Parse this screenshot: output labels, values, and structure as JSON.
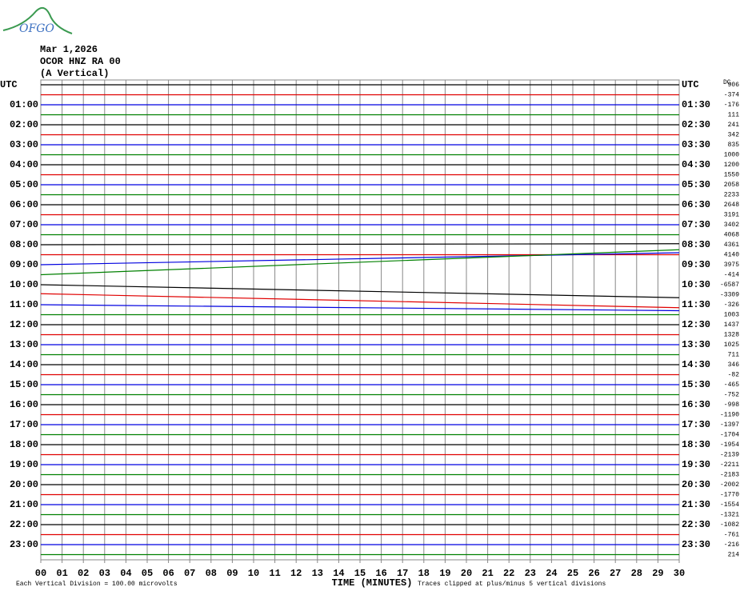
{
  "logo": "OFGO",
  "chart_data": {
    "type": "helicorder",
    "header": [
      "Mar 1,2026",
      "OCOR HNZ RA 00",
      "(A Vertical)"
    ],
    "left_labels": [
      "UTC",
      "01:00",
      "02:00",
      "03:00",
      "04:00",
      "05:00",
      "06:00",
      "07:00",
      "08:00",
      "09:00",
      "10:00",
      "11:00",
      "12:00",
      "13:00",
      "14:00",
      "15:00",
      "16:00",
      "17:00",
      "18:00",
      "19:00",
      "20:00",
      "21:00",
      "22:00",
      "23:00"
    ],
    "right_labels": [
      "UTC",
      "01:30",
      "02:30",
      "03:30",
      "04:30",
      "05:30",
      "06:30",
      "07:30",
      "08:30",
      "09:30",
      "10:30",
      "11:30",
      "12:30",
      "13:30",
      "14:30",
      "15:30",
      "16:30",
      "17:30",
      "18:30",
      "19:30",
      "20:30",
      "21:30",
      "22:30",
      "23:30"
    ],
    "dc_label": "DC",
    "dc_values": [
      906,
      -374,
      -176,
      111,
      241,
      342,
      835,
      1000,
      1200,
      1550,
      2058,
      2233,
      2648,
      3191,
      3402,
      4068,
      4361,
      4140,
      3975,
      -414,
      -6587,
      -3309,
      -326,
      1003,
      1437,
      1328,
      1025,
      711,
      346,
      -82,
      -465,
      -752,
      -998,
      -1190,
      -1397,
      -1704,
      -1954,
      -2139,
      -2211,
      -2183,
      -2002,
      -1770,
      -1554,
      -1321,
      -1082,
      -761,
      -216,
      214
    ],
    "trace_colors": [
      "#000000",
      "#e00000",
      "#0000e0",
      "#008000"
    ],
    "x": [
      0,
      30
    ],
    "xlim": [
      0,
      30
    ],
    "xticks": [
      {
        "value": 0,
        "label": "00"
      },
      {
        "value": 1,
        "label": "01"
      },
      {
        "value": 2,
        "label": "02"
      },
      {
        "value": 3,
        "label": "03"
      },
      {
        "value": 4,
        "label": "04"
      },
      {
        "value": 5,
        "label": "05"
      },
      {
        "value": 6,
        "label": "06"
      },
      {
        "value": 7,
        "label": "07"
      },
      {
        "value": 8,
        "label": "08"
      },
      {
        "value": 9,
        "label": "09"
      },
      10,
      11,
      12,
      13,
      14,
      15,
      16,
      17,
      18,
      19,
      20,
      21,
      22,
      23,
      24,
      25,
      26,
      27,
      28,
      29,
      30
    ],
    "x_label": "TIME (MINUTES)",
    "scale_note": "Each Vertical Division =  100.00 microvolts",
    "clip_note": "Traces clipped at plus/minus 5 vertical divisions",
    "traces": [
      [
        0,
        0
      ],
      [
        0,
        0
      ],
      [
        0,
        0
      ],
      [
        0,
        0
      ],
      [
        0,
        0
      ],
      [
        0,
        0
      ],
      [
        0,
        0
      ],
      [
        0,
        0
      ],
      [
        0,
        0
      ],
      [
        0,
        0
      ],
      [
        0,
        0
      ],
      [
        0,
        0
      ],
      [
        0,
        0
      ],
      [
        0,
        0
      ],
      [
        0,
        0
      ],
      [
        0,
        0
      ],
      [
        0,
        0.1
      ],
      [
        0,
        0
      ],
      [
        0,
        1.2
      ],
      [
        0,
        2.5
      ],
      [
        0,
        -1.3
      ],
      [
        0.1,
        -1.3
      ],
      [
        0,
        -0.6
      ],
      [
        0,
        0
      ],
      [
        0,
        0
      ],
      [
        0,
        0
      ],
      [
        0,
        0
      ],
      [
        0,
        0
      ],
      [
        0,
        0
      ],
      [
        0,
        0
      ],
      [
        0,
        0
      ],
      [
        0,
        0
      ],
      [
        0,
        0
      ],
      [
        0,
        0
      ],
      [
        0,
        0
      ],
      [
        0,
        0
      ],
      [
        0,
        0
      ],
      [
        0,
        0
      ],
      [
        0,
        0
      ],
      [
        0,
        0
      ],
      [
        0,
        0
      ],
      [
        0,
        0
      ],
      [
        0,
        0
      ],
      [
        0,
        0
      ],
      [
        0,
        0
      ],
      [
        0,
        0
      ],
      [
        0,
        0
      ],
      [
        0,
        0
      ]
    ]
  }
}
